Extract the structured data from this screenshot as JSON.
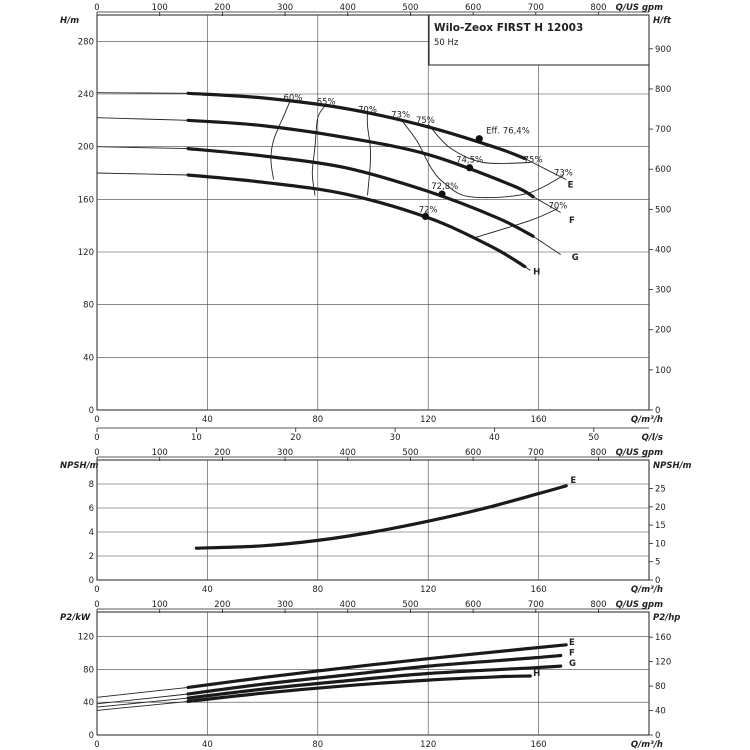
{
  "title_box": {
    "title": "Wilo-Zeox FIRST H 12003",
    "subtitle": "50 Hz"
  },
  "chart_data": [
    {
      "type": "line",
      "name": "head",
      "xlabel": "Q/m³/h",
      "ylabel": "H/m",
      "ylabel_right": "H/ft",
      "top_axis_label": "Q/US gpm",
      "bottom2_axis_label": "Q/l/s",
      "xlim": [
        0,
        200
      ],
      "ylim": [
        0,
        300
      ],
      "xticks": [
        0,
        40,
        80,
        120,
        160
      ],
      "yticks": [
        0,
        40,
        80,
        120,
        160,
        200,
        240,
        280
      ],
      "ft_ticks": [
        0,
        100,
        200,
        300,
        400,
        500,
        600,
        700,
        800,
        900,
        1000
      ],
      "gpm_ticks": [
        0,
        100,
        200,
        300,
        400,
        500,
        600,
        700,
        800
      ],
      "ls_ticks": [
        0,
        10,
        20,
        30,
        40,
        50
      ],
      "series": [
        {
          "name": "E",
          "x": [
            0,
            33,
            60,
            90,
            120,
            145,
            155
          ],
          "y": [
            241,
            240.5,
            237,
            229,
            215,
            199,
            191
          ]
        },
        {
          "name": "F",
          "x": [
            0,
            33,
            60,
            90,
            120,
            150,
            158
          ],
          "y": [
            222,
            220,
            216,
            207,
            194,
            171,
            162
          ]
        },
        {
          "name": "G",
          "x": [
            0,
            33,
            60,
            90,
            120,
            145,
            158
          ],
          "y": [
            200,
            198.5,
            193,
            184,
            166,
            146,
            132
          ]
        },
        {
          "name": "H",
          "x": [
            0,
            33,
            60,
            90,
            120,
            143,
            155
          ],
          "y": [
            180,
            178.5,
            173,
            164,
            146,
            124,
            109
          ]
        }
      ],
      "thin_extensions": [
        {
          "name": "E",
          "x": [
            155,
            170
          ],
          "y": [
            191,
            175
          ]
        },
        {
          "name": "F",
          "x": [
            158,
            168
          ],
          "y": [
            162,
            150
          ]
        },
        {
          "name": "G",
          "x": [
            158,
            168
          ],
          "y": [
            132,
            118
          ]
        },
        {
          "name": "H",
          "x": [
            155,
            157
          ],
          "y": [
            109,
            106
          ]
        }
      ],
      "curve_labels": [
        {
          "text": "E",
          "x": 170.5,
          "y": 169
        },
        {
          "text": "F",
          "x": 171,
          "y": 142
        },
        {
          "text": "G",
          "x": 172,
          "y": 114
        },
        {
          "text": "H",
          "x": 158,
          "y": 103
        }
      ],
      "efficiency_labels": [
        {
          "text": "60%",
          "x": 71,
          "y": 235
        },
        {
          "text": "65%",
          "x": 83,
          "y": 232
        },
        {
          "text": "70%",
          "x": 98,
          "y": 226
        },
        {
          "text": "73%",
          "x": 110,
          "y": 222
        },
        {
          "text": "75%",
          "x": 119,
          "y": 218
        },
        {
          "text": "Eff. 76,4%",
          "x": 141,
          "y": 210
        },
        {
          "text": "74,5%",
          "x": 135,
          "y": 188
        },
        {
          "text": "72,8%",
          "x": 126,
          "y": 168
        },
        {
          "text": "72%",
          "x": 120,
          "y": 150
        },
        {
          "text": "75%",
          "x": 158,
          "y": 188
        },
        {
          "text": "73%",
          "x": 169,
          "y": 178
        },
        {
          "text": "70%",
          "x": 167,
          "y": 153
        }
      ],
      "bep_points": [
        {
          "x": 138.5,
          "y": 206
        },
        {
          "x": 135,
          "y": 184
        },
        {
          "x": 125,
          "y": 164
        },
        {
          "x": 119,
          "y": 147
        }
      ],
      "iso_lines": [
        {
          "x": [
            70,
            68,
            64,
            63,
            64
          ],
          "y": [
            235,
            225,
            205,
            190,
            175
          ]
        },
        {
          "x": [
            83,
            80,
            79,
            78,
            79
          ],
          "y": [
            232,
            222,
            200,
            180,
            163
          ]
        },
        {
          "x": [
            98,
            98,
            99,
            99,
            98
          ],
          "y": [
            226,
            216,
            200,
            186,
            163
          ]
        },
        {
          "x": [
            110,
            116,
            121,
            126,
            135,
            155,
            169
          ],
          "y": [
            221,
            204,
            184,
            172,
            162,
            164,
            178
          ]
        },
        {
          "x": [
            120,
            128,
            140,
            157
          ],
          "y": [
            217,
            199,
            188,
            188
          ]
        },
        {
          "x": [
            137,
            157,
            167
          ],
          "y": [
            131,
            144,
            153
          ]
        }
      ]
    },
    {
      "type": "line",
      "name": "npsh",
      "xlabel": "Q/m³/h",
      "ylabel": "NPSH/m",
      "ylabel_right": "NPSH/m",
      "top_axis_label": "Q/US gpm",
      "xlim": [
        0,
        200
      ],
      "ylim": [
        0,
        10
      ],
      "xticks": [
        0,
        40,
        80,
        120,
        160
      ],
      "yticks": [
        0,
        2,
        4,
        6,
        8
      ],
      "ft_ticks": [
        0,
        5,
        10,
        15,
        20,
        25
      ],
      "gpm_ticks": [
        0,
        100,
        200,
        300,
        400,
        500,
        600,
        700,
        800
      ],
      "series": [
        {
          "name": "E",
          "x": [
            36,
            60,
            80,
            100,
            120,
            140,
            160,
            170
          ],
          "y": [
            2.65,
            2.85,
            3.3,
            4.0,
            4.9,
            5.95,
            7.2,
            7.85
          ]
        }
      ],
      "curve_labels": [
        {
          "text": "E",
          "x": 171.5,
          "y": 8.1
        }
      ]
    },
    {
      "type": "line",
      "name": "power",
      "xlabel": "Q/m³/h",
      "ylabel": "P2/kW",
      "ylabel_right": "P2/hp",
      "top_axis_label": "Q/US gpm",
      "xlim": [
        0,
        200
      ],
      "ylim": [
        0,
        150
      ],
      "xticks": [
        0,
        40,
        80,
        120,
        160
      ],
      "yticks": [
        0,
        40,
        80,
        120
      ],
      "ft_ticks": [
        0,
        40,
        80,
        120,
        160
      ],
      "gpm_ticks": [
        0,
        100,
        200,
        300,
        400,
        500,
        600,
        700,
        800
      ],
      "series": [
        {
          "name": "E",
          "x": [
            0,
            33,
            60,
            90,
            120,
            155,
            170
          ],
          "y": [
            46,
            58,
            70,
            82,
            93,
            105,
            110
          ]
        },
        {
          "name": "F",
          "x": [
            0,
            33,
            60,
            90,
            120,
            158,
            168
          ],
          "y": [
            38,
            50,
            62,
            73,
            84,
            94,
            97
          ]
        },
        {
          "name": "G",
          "x": [
            0,
            33,
            60,
            90,
            120,
            158,
            168
          ],
          "y": [
            34,
            45,
            56,
            66,
            75,
            82,
            84
          ]
        },
        {
          "name": "H",
          "x": [
            0,
            33,
            60,
            90,
            120,
            145,
            157
          ],
          "y": [
            30,
            41,
            51,
            60,
            67,
            71,
            72
          ]
        }
      ],
      "curve_labels": [
        {
          "text": "E",
          "x": 171,
          "y": 110
        },
        {
          "text": "F",
          "x": 171,
          "y": 97
        },
        {
          "text": "G",
          "x": 171,
          "y": 84
        },
        {
          "text": "H",
          "x": 158,
          "y": 72
        }
      ]
    }
  ]
}
